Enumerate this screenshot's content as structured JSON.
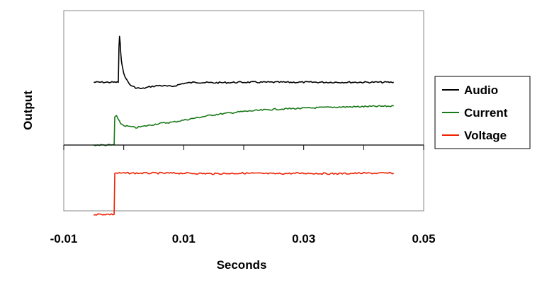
{
  "chart_data": {
    "type": "line",
    "title": "",
    "xlabel": "Seconds",
    "ylabel": "Output",
    "xlim": [
      -0.01,
      0.05
    ],
    "x_ticks": [
      -0.01,
      0.01,
      0.03,
      0.05
    ],
    "x_tick_labels": [
      "-0.01",
      "0.01",
      "0.03",
      "0.05"
    ],
    "y_ticks_shown": false,
    "grid": false,
    "legend_position": "right",
    "colors": {
      "Audio": "#000000",
      "Current": "#1a7a1a",
      "Voltage": "#ee2200"
    },
    "series": [
      {
        "name": "Audio",
        "color": "#000000",
        "x": [
          -0.005,
          -0.0015,
          -0.0009,
          -0.0008,
          -0.0007,
          -0.0006,
          -0.0005,
          -0.0004,
          -0.0003,
          0.0,
          0.0005,
          0.001,
          0.0015,
          0.002,
          0.003,
          0.0045,
          0.006,
          0.008,
          0.01,
          0.012,
          0.015,
          0.02,
          0.025,
          0.03,
          0.035,
          0.04,
          0.045
        ],
        "y": [
          0.58,
          0.58,
          0.58,
          0.9,
          1.0,
          0.94,
          0.86,
          0.79,
          0.74,
          0.66,
          0.6,
          0.56,
          0.54,
          0.53,
          0.52,
          0.54,
          0.55,
          0.54,
          0.57,
          0.58,
          0.575,
          0.58,
          0.58,
          0.58,
          0.58,
          0.58,
          0.58
        ]
      },
      {
        "name": "Current",
        "color": "#1a7a1a",
        "x": [
          -0.005,
          -0.0016,
          -0.0015,
          -0.0012,
          -0.001,
          -0.0005,
          0.0,
          0.001,
          0.002,
          0.004,
          0.006,
          0.008,
          0.01,
          0.015,
          0.02,
          0.025,
          0.03,
          0.035,
          0.04,
          0.045
        ],
        "y": [
          0.0,
          0.0,
          0.26,
          0.27,
          0.24,
          0.2,
          0.18,
          0.17,
          0.16,
          0.18,
          0.2,
          0.21,
          0.23,
          0.28,
          0.31,
          0.33,
          0.34,
          0.35,
          0.355,
          0.36
        ]
      },
      {
        "name": "Voltage",
        "color": "#ee2200",
        "x": [
          -0.005,
          -0.0016,
          -0.0015,
          0.0,
          0.005,
          0.01,
          0.015,
          0.02,
          0.025,
          0.03,
          0.035,
          0.04,
          0.045
        ],
        "y": [
          -0.64,
          -0.64,
          -0.26,
          -0.26,
          -0.26,
          -0.26,
          -0.265,
          -0.26,
          -0.265,
          -0.26,
          -0.265,
          -0.26,
          -0.26
        ]
      }
    ]
  }
}
